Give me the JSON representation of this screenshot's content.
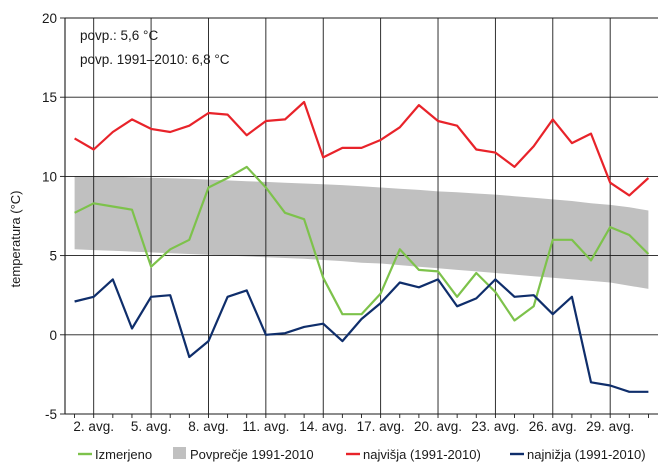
{
  "chart_data": {
    "type": "line",
    "ylabel": "temperatura (°C)",
    "ylim": [
      -5,
      20
    ],
    "yticks": [
      -5,
      0,
      5,
      10,
      15,
      20
    ],
    "xlim": [
      0.5,
      31.5
    ],
    "xtick_values": [
      2,
      5,
      8,
      11,
      14,
      17,
      20,
      23,
      26,
      29
    ],
    "xtick_labels": [
      "2. avg.",
      "5. avg.",
      "8. avg.",
      "11. avg.",
      "14. avg.",
      "17. avg.",
      "20. avg.",
      "23. avg.",
      "26. avg.",
      "29. avg."
    ],
    "annotations": [
      "povp.: 5,6 °C",
      "povp. 1991–2010: 6,8 °C"
    ],
    "x": [
      1,
      2,
      3,
      4,
      5,
      6,
      7,
      8,
      9,
      10,
      11,
      12,
      13,
      14,
      15,
      16,
      17,
      18,
      19,
      20,
      21,
      22,
      23,
      24,
      25,
      26,
      27,
      28,
      29,
      30,
      31
    ],
    "band": {
      "name": "Povprečje 1991-2010",
      "color": "#c0c0c0",
      "lower": [
        5.4,
        5.35,
        5.3,
        5.25,
        5.2,
        5.15,
        5.1,
        5.05,
        5.0,
        4.95,
        4.9,
        4.85,
        4.8,
        4.72,
        4.65,
        4.55,
        4.5,
        4.4,
        4.3,
        4.2,
        4.1,
        4.0,
        3.9,
        3.8,
        3.7,
        3.6,
        3.5,
        3.4,
        3.3,
        3.1,
        2.9
      ],
      "upper": [
        10.0,
        10.0,
        9.98,
        9.95,
        9.92,
        9.88,
        9.85,
        9.8,
        9.75,
        9.7,
        9.65,
        9.6,
        9.55,
        9.5,
        9.45,
        9.38,
        9.3,
        9.22,
        9.15,
        9.05,
        9.0,
        8.92,
        8.85,
        8.75,
        8.65,
        8.55,
        8.45,
        8.3,
        8.2,
        8.05,
        7.85
      ]
    },
    "series": [
      {
        "name": "najvišja (1991-2010)",
        "color": "#e8232a",
        "values": [
          12.4,
          11.7,
          12.8,
          13.6,
          13.0,
          12.8,
          13.2,
          14.0,
          13.9,
          12.6,
          13.5,
          13.6,
          14.7,
          11.2,
          11.8,
          11.8,
          12.3,
          13.1,
          14.5,
          13.5,
          13.2,
          11.7,
          11.5,
          10.6,
          11.9,
          13.6,
          12.1,
          12.7,
          9.6,
          8.8,
          9.9
        ]
      },
      {
        "name": "Izmerjeno",
        "color": "#7dc24b",
        "values": [
          7.7,
          8.3,
          8.1,
          7.9,
          4.3,
          5.4,
          6.0,
          9.3,
          9.9,
          10.6,
          9.3,
          7.7,
          7.3,
          3.6,
          1.3,
          1.3,
          2.6,
          5.4,
          4.1,
          4.0,
          2.4,
          3.9,
          2.7,
          0.9,
          1.8,
          6.0,
          6.0,
          4.7,
          6.8,
          6.3,
          5.1
        ]
      },
      {
        "name": "najnižja (1991-2010)",
        "color": "#0f2e6b",
        "values": [
          2.1,
          2.4,
          3.5,
          0.4,
          2.4,
          2.5,
          -1.4,
          -0.4,
          2.4,
          2.8,
          0.0,
          0.1,
          0.5,
          0.7,
          -0.4,
          1.0,
          2.0,
          3.3,
          3.0,
          3.5,
          1.8,
          2.3,
          3.5,
          2.4,
          2.5,
          1.3,
          2.4,
          -3.0,
          -3.2,
          -3.6,
          -3.6
        ]
      }
    ],
    "legend": {
      "placement": "bottom",
      "entries": [
        {
          "label": "Izmerjeno",
          "kind": "line",
          "color": "#7dc24b"
        },
        {
          "label": "Povprečje 1991-2010",
          "kind": "box",
          "color": "#c0c0c0"
        },
        {
          "label": "najvišja (1991-2010)",
          "kind": "line",
          "color": "#e8232a"
        },
        {
          "label": "najnižja (1991-2010)",
          "kind": "line",
          "color": "#0f2e6b"
        }
      ]
    },
    "grid": true
  }
}
